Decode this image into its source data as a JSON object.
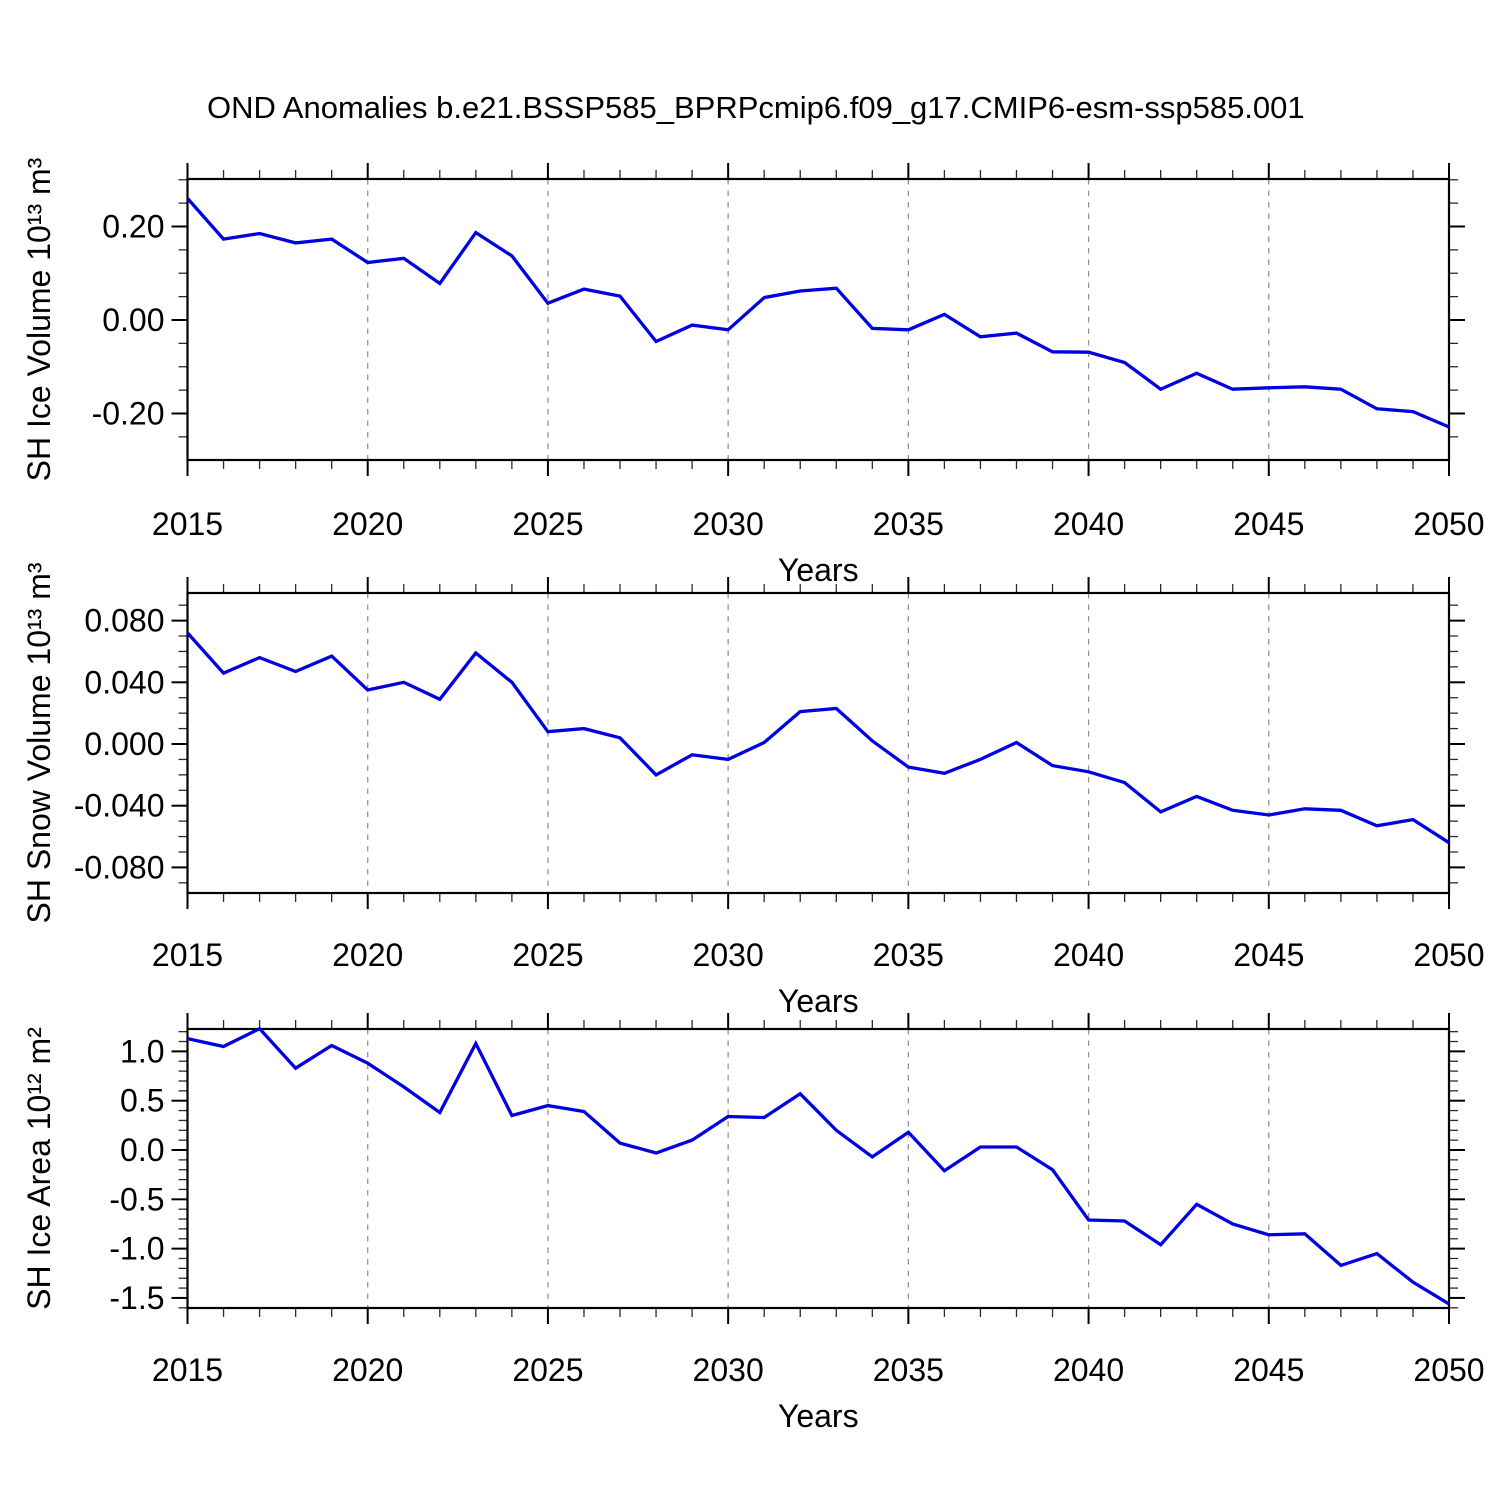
{
  "figure": {
    "title": "OND Anomalies b.e21.BSSP585_BPRPcmip6.f09_g17.CMIP6-esm-ssp585.001",
    "background": "#ffffff"
  },
  "colors": {
    "line": "#0000e0",
    "grid": "#909090",
    "axis": "#000000",
    "minor_tick": "#2b2b2b"
  },
  "chart_data": [
    {
      "type": "line",
      "title": "",
      "ylabel": "SH Ice Volume 10¹³ m³",
      "xlabel": "Years",
      "legend": "none",
      "grid": "vertical-dashed",
      "grid_x": [
        2020,
        2025,
        2030,
        2035,
        2040,
        2045
      ],
      "x": [
        2015,
        2016,
        2017,
        2018,
        2019,
        2020,
        2021,
        2022,
        2023,
        2024,
        2025,
        2026,
        2027,
        2028,
        2029,
        2030,
        2031,
        2032,
        2033,
        2034,
        2035,
        2036,
        2037,
        2038,
        2039,
        2040,
        2041,
        2042,
        2043,
        2044,
        2045,
        2046,
        2047,
        2048,
        2049,
        2050
      ],
      "values": [
        0.26,
        0.173,
        0.185,
        0.165,
        0.173,
        0.123,
        0.132,
        0.078,
        0.187,
        0.137,
        0.036,
        0.066,
        0.051,
        -0.046,
        -0.011,
        -0.021,
        0.048,
        0.062,
        0.068,
        -0.018,
        -0.021,
        0.012,
        -0.036,
        -0.028,
        -0.068,
        -0.069,
        -0.091,
        -0.148,
        -0.114,
        -0.148,
        -0.145,
        -0.143,
        -0.148,
        -0.19,
        -0.196,
        -0.229
      ],
      "ylim": [
        -0.2995,
        0.3016
      ],
      "yticks": [
        {
          "value": 0.2,
          "label": "0.20"
        },
        {
          "value": 0.0,
          "label": "0.00"
        },
        {
          "value": -0.2,
          "label": "-0.20"
        }
      ],
      "ytick_minor_step": 0.05,
      "xticks": [
        {
          "value": 2015,
          "label": "2015"
        },
        {
          "value": 2020,
          "label": "2020"
        },
        {
          "value": 2025,
          "label": "2025"
        },
        {
          "value": 2030,
          "label": "2030"
        },
        {
          "value": 2035,
          "label": "2035"
        },
        {
          "value": 2040,
          "label": "2040"
        },
        {
          "value": 2045,
          "label": "2045"
        },
        {
          "value": 2050,
          "label": "2050"
        }
      ],
      "xtick_minor_step": 1
    },
    {
      "type": "line",
      "title": "",
      "ylabel": "SH Snow Volume 10¹³ m³",
      "xlabel": "Years",
      "legend": "none",
      "grid": "vertical-dashed",
      "grid_x": [
        2020,
        2025,
        2030,
        2035,
        2040,
        2045
      ],
      "x": [
        2015,
        2016,
        2017,
        2018,
        2019,
        2020,
        2021,
        2022,
        2023,
        2024,
        2025,
        2026,
        2027,
        2028,
        2029,
        2030,
        2031,
        2032,
        2033,
        2034,
        2035,
        2036,
        2037,
        2038,
        2039,
        2040,
        2041,
        2042,
        2043,
        2044,
        2045,
        2046,
        2047,
        2048,
        2049,
        2050
      ],
      "values": [
        0.072,
        0.046,
        0.056,
        0.047,
        0.057,
        0.035,
        0.04,
        0.029,
        0.059,
        0.04,
        0.008,
        0.01,
        0.004,
        -0.02,
        -0.007,
        -0.01,
        0.001,
        0.021,
        0.023,
        0.002,
        -0.015,
        -0.019,
        -0.01,
        0.001,
        -0.014,
        -0.018,
        -0.025,
        -0.044,
        -0.034,
        -0.043,
        -0.046,
        -0.042,
        -0.043,
        -0.053,
        -0.049,
        -0.064
      ],
      "ylim": [
        -0.0966,
        0.0979
      ],
      "yticks": [
        {
          "value": 0.08,
          "label": "0.080"
        },
        {
          "value": 0.04,
          "label": "0.040"
        },
        {
          "value": 0.0,
          "label": "0.000"
        },
        {
          "value": -0.04,
          "label": "-0.040"
        },
        {
          "value": -0.08,
          "label": "-0.080"
        }
      ],
      "ytick_minor_step": 0.01,
      "xticks": [
        {
          "value": 2015,
          "label": "2015"
        },
        {
          "value": 2020,
          "label": "2020"
        },
        {
          "value": 2025,
          "label": "2025"
        },
        {
          "value": 2030,
          "label": "2030"
        },
        {
          "value": 2035,
          "label": "2035"
        },
        {
          "value": 2040,
          "label": "2040"
        },
        {
          "value": 2045,
          "label": "2045"
        },
        {
          "value": 2050,
          "label": "2050"
        }
      ],
      "xtick_minor_step": 1
    },
    {
      "type": "line",
      "title": "",
      "ylabel": "SH Ice Area 10¹² m²",
      "xlabel": "Years",
      "legend": "none",
      "grid": "vertical-dashed",
      "grid_x": [
        2020,
        2025,
        2030,
        2035,
        2040,
        2045
      ],
      "x": [
        2015,
        2016,
        2017,
        2018,
        2019,
        2020,
        2021,
        2022,
        2023,
        2024,
        2025,
        2026,
        2027,
        2028,
        2029,
        2030,
        2031,
        2032,
        2033,
        2034,
        2035,
        2036,
        2037,
        2038,
        2039,
        2040,
        2041,
        2042,
        2043,
        2044,
        2045,
        2046,
        2047,
        2048,
        2049,
        2050
      ],
      "values": [
        1.13,
        1.05,
        1.23,
        0.83,
        1.06,
        0.88,
        0.64,
        0.38,
        1.08,
        0.35,
        0.45,
        0.39,
        0.07,
        -0.03,
        0.1,
        0.34,
        0.33,
        0.57,
        0.2,
        -0.07,
        0.18,
        -0.21,
        0.03,
        0.03,
        -0.2,
        -0.71,
        -0.72,
        -0.96,
        -0.55,
        -0.75,
        -0.86,
        -0.85,
        -1.17,
        -1.05,
        -1.34,
        -1.56
      ],
      "ylim": [
        -1.602,
        1.227
      ],
      "yticks": [
        {
          "value": 1.0,
          "label": "1.0"
        },
        {
          "value": 0.5,
          "label": "0.5"
        },
        {
          "value": 0.0,
          "label": "0.0"
        },
        {
          "value": -0.5,
          "label": "-0.5"
        },
        {
          "value": -1.0,
          "label": "-1.0"
        },
        {
          "value": -1.5,
          "label": "-1.5"
        }
      ],
      "ytick_minor_step": 0.1,
      "xticks": [
        {
          "value": 2015,
          "label": "2015"
        },
        {
          "value": 2020,
          "label": "2020"
        },
        {
          "value": 2025,
          "label": "2025"
        },
        {
          "value": 2030,
          "label": "2030"
        },
        {
          "value": 2035,
          "label": "2035"
        },
        {
          "value": 2040,
          "label": "2040"
        },
        {
          "value": 2045,
          "label": "2045"
        },
        {
          "value": 2050,
          "label": "2050"
        }
      ],
      "xtick_minor_step": 1
    }
  ]
}
